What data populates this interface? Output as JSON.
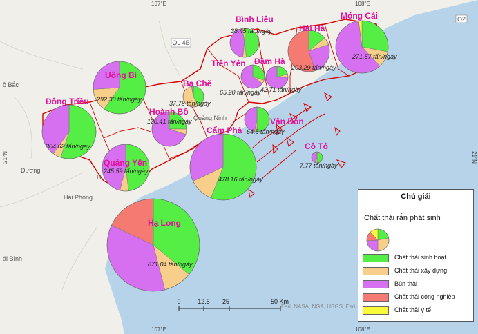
{
  "map": {
    "grid": {
      "lon_107": "107°E",
      "lon_108": "108°E",
      "lat_21": "21°N"
    },
    "background_labels": {
      "bac": "ồ Bắc",
      "hai_phong": "Hải Phòng",
      "thai_binh": "ái Bình",
      "duong": "Dương",
      "quang_ninh": "Quảng Ninh",
      "ha": "H",
      "ql4b": "QL 4B",
      "o2": "O2"
    },
    "colors": {
      "water": "#b6d3ea",
      "land": "#f1efe9",
      "border": "#d40000",
      "label": "#e0119b"
    }
  },
  "categories": [
    {
      "key": "sinh_hoat",
      "label": "Chất thải sinh hoạt",
      "color": "#55ee44"
    },
    {
      "key": "xay_dung",
      "label": "Chất thải xây dựng",
      "color": "#f8cf8a"
    },
    {
      "key": "bun_thai",
      "label": "Bùn thải",
      "color": "#d66ff0"
    },
    {
      "key": "cong_nghiep",
      "label": "Chất thải công nghiệp",
      "color": "#f47a72"
    },
    {
      "key": "y_te",
      "label": "Chất thải y tế",
      "color": "#fafa3a"
    }
  ],
  "localities": [
    {
      "name": "Bình Liêu",
      "value_label": "38.45 tấn/ngày",
      "shares": [
        0.48,
        0.04,
        0.46,
        0.0,
        0.02
      ]
    },
    {
      "name": "Móng Cái",
      "value_label": "271.57 tấn/ngày",
      "shares": [
        0.28,
        0.1,
        0.6,
        0.0,
        0.02
      ]
    },
    {
      "name": "Hải Hà",
      "value_label": "203.29 tấn/ngày",
      "shares": [
        0.14,
        0.06,
        0.25,
        0.55,
        0.0
      ]
    },
    {
      "name": "Đầm Hà",
      "value_label": "42.71 tấn/ngày",
      "shares": [
        0.2,
        0.05,
        0.75,
        0.0,
        0.0
      ]
    },
    {
      "name": "Tiên Yên",
      "value_label": "65.20 tấn/ngày",
      "shares": [
        0.3,
        0.05,
        0.65,
        0.0,
        0.0
      ]
    },
    {
      "name": "Uông Bí",
      "value_label": "292.30 tấn/ngày",
      "shares": [
        0.6,
        0.14,
        0.26,
        0.0,
        0.0
      ]
    },
    {
      "name": "Ba Chẽ",
      "value_label": "37.78 tấn/ngày",
      "shares": [
        0.42,
        0.55,
        0.03,
        0.0,
        0.0
      ]
    },
    {
      "name": "Hoành Bồ",
      "value_label": "128.41 tấn/ngày",
      "shares": [
        0.25,
        0.05,
        0.7,
        0.0,
        0.0
      ]
    },
    {
      "name": "Vân Đồn",
      "value_label": "64.5 tấn/ngày",
      "shares": [
        0.5,
        0.03,
        0.47,
        0.0,
        0.0
      ]
    },
    {
      "name": "Đông Triều",
      "value_label": "304.62 tấn/ngày",
      "shares": [
        0.55,
        0.05,
        0.4,
        0.0,
        0.0
      ]
    },
    {
      "name": "Cô Tô",
      "value_label": "7.77 tấn/ngày",
      "shares": [
        0.5,
        0.05,
        0.45,
        0.0,
        0.0
      ]
    },
    {
      "name": "Cẩm Phả",
      "value_label": "478.16 tấn/ngày",
      "shares": [
        0.56,
        0.12,
        0.32,
        0.0,
        0.0
      ]
    },
    {
      "name": "Quảng Yên",
      "value_label": "245.59 tấn/ngày",
      "shares": [
        0.48,
        0.06,
        0.46,
        0.0,
        0.0
      ]
    },
    {
      "name": "Hạ Long",
      "value_label": "871.04 tấn/ngày",
      "shares": [
        0.36,
        0.1,
        0.36,
        0.18,
        0.0
      ]
    }
  ],
  "legend": {
    "title": "Chú giải",
    "subtitle": "Chất thải rắn phát sinh"
  },
  "scale_bar": {
    "ticks": [
      "0",
      "12.5",
      "25",
      "50 Km"
    ]
  },
  "credit": "Esri, NASA, NGA, USGS, Esri"
}
